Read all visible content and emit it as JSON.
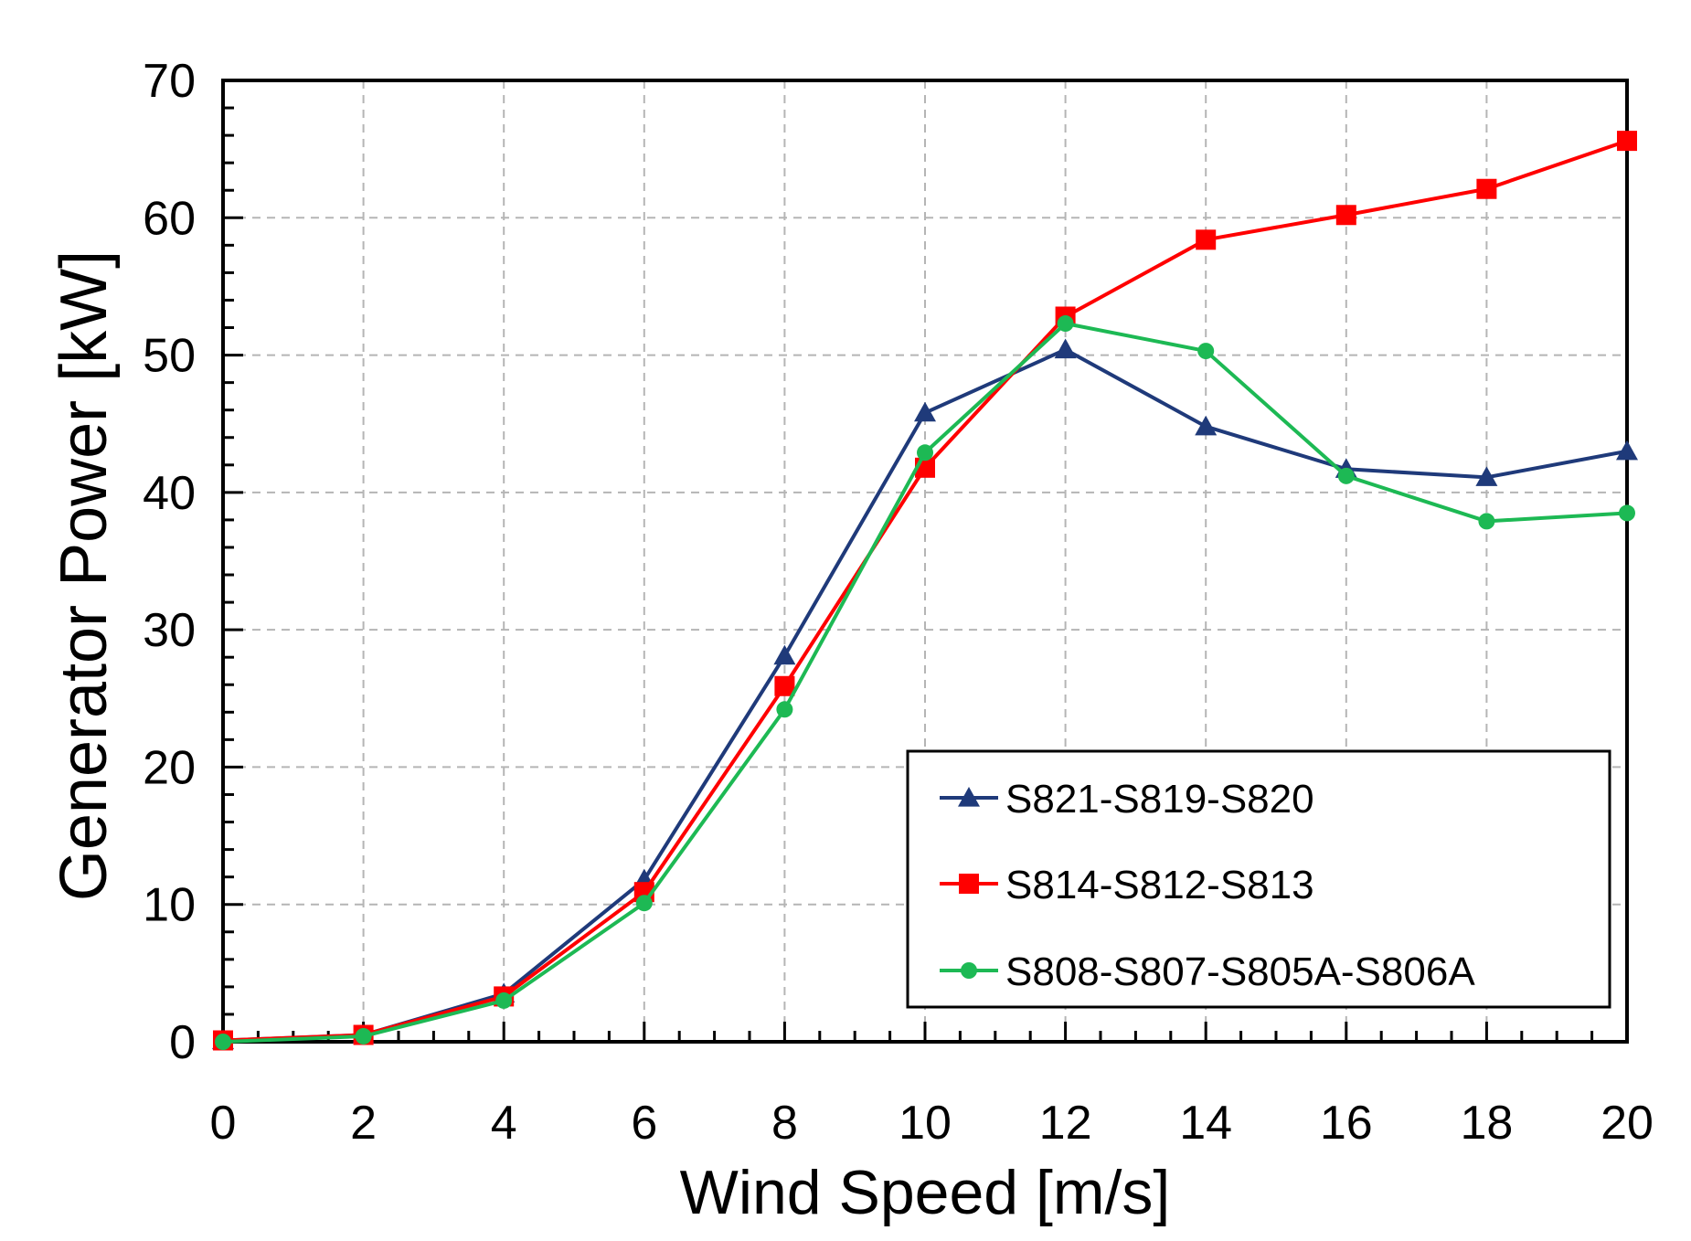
{
  "chart_data": {
    "type": "line",
    "title": "",
    "xlabel": "Wind Speed [m/s]",
    "ylabel": "Generator Power [kW]",
    "xlim": [
      0,
      20
    ],
    "ylim": [
      0,
      70
    ],
    "xticks": [
      0,
      2,
      4,
      6,
      8,
      10,
      12,
      14,
      16,
      18,
      20
    ],
    "yticks": [
      0,
      10,
      20,
      30,
      40,
      50,
      60,
      70
    ],
    "xtick_labels": [
      "0",
      "2",
      "4",
      "6",
      "8",
      "10",
      "12",
      "14",
      "16",
      "18",
      "20"
    ],
    "ytick_labels": [
      "0",
      "10",
      "20",
      "30",
      "40",
      "50",
      "60",
      "70"
    ],
    "grid": true,
    "legend_position": "bottom-right",
    "x": [
      0,
      2,
      4,
      6,
      8,
      10,
      12,
      14,
      16,
      18,
      20
    ],
    "series": [
      {
        "name": "S821-S819-S820",
        "color": "#1f3a7a",
        "marker": "triangle",
        "values": [
          0.1,
          0.5,
          3.5,
          11.8,
          28.1,
          45.8,
          50.4,
          44.8,
          41.7,
          41.1,
          43.0
        ]
      },
      {
        "name": "S814-S812-S813",
        "color": "#ff0000",
        "marker": "square",
        "values": [
          0.1,
          0.5,
          3.3,
          10.9,
          25.9,
          41.8,
          52.8,
          58.4,
          60.2,
          62.1,
          65.6
        ]
      },
      {
        "name": "S808-S807-S805A-S806A",
        "color": "#1db954",
        "marker": "circle",
        "values": [
          0.0,
          0.4,
          3.0,
          10.1,
          24.2,
          42.9,
          52.3,
          50.3,
          41.2,
          37.9,
          38.5
        ]
      }
    ]
  }
}
